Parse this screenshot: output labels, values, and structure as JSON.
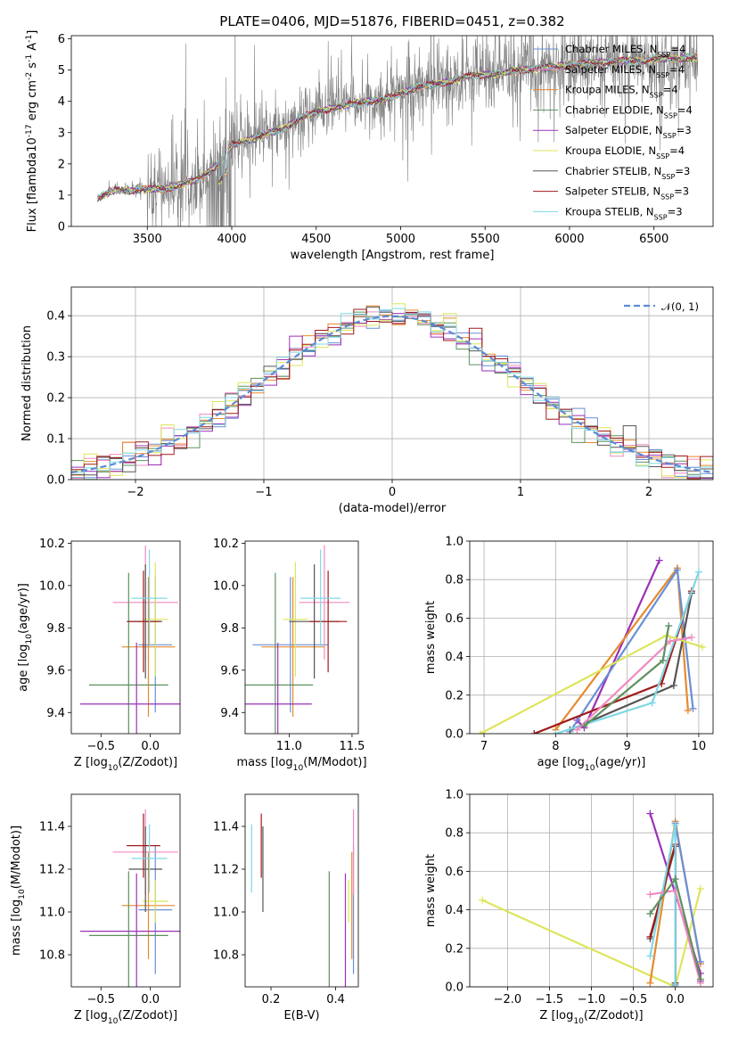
{
  "colors": {
    "Chabrier MILES": "#6a8fd6",
    "Salpeter MILES": "#f08ac0",
    "Kroupa MILES": "#e58a2f",
    "Chabrier ELODIE": "#5e9160",
    "Salpeter ELODIE": "#9b30b8",
    "Kroupa ELODIE": "#dde55a",
    "Chabrier STELIB": "#555555",
    "Salpeter STELIB": "#a01a1a",
    "Kroupa STELIB": "#7fd8e6",
    "data": "#808080",
    "normal_curve": "#5b8bd6",
    "grid": "#b0b0b0"
  },
  "chart_data": [
    {
      "id": "spectrum",
      "type": "line",
      "title": "PLATE=0406, MJD=51876, FIBERID=0451, z=0.382",
      "xlabel": "wavelength [Angstrom, rest frame]",
      "ylabel": "Flux [f$_\\lambda$10$^{-17}$ erg cm$^{-2}$ s$^{-1}$ A$^{-1}$]",
      "xlim": [
        3050,
        6850
      ],
      "ylim": [
        0,
        6.1
      ],
      "xticks": [
        3500,
        4000,
        4500,
        5000,
        5500,
        6000,
        6500
      ],
      "yticks": [
        0,
        1,
        2,
        3,
        4,
        5,
        6
      ],
      "grid": false,
      "legend_position": "top-right",
      "continuum": {
        "x": [
          3200,
          3300,
          3400,
          3500,
          3600,
          3700,
          3800,
          3900,
          3950,
          4000,
          4100,
          4200,
          4300,
          4400,
          4500,
          4600,
          4700,
          4800,
          4900,
          5000,
          5100,
          5200,
          5300,
          5400,
          5500,
          5600,
          5700,
          5800,
          5900,
          6000,
          6100,
          6200,
          6300,
          6400,
          6500,
          6600,
          6700
        ],
        "y": [
          0.9,
          1.15,
          1.15,
          1.2,
          1.2,
          1.35,
          1.5,
          1.9,
          2.2,
          2.6,
          2.75,
          2.95,
          3.1,
          3.45,
          3.65,
          3.8,
          3.9,
          4.0,
          4.05,
          4.25,
          4.45,
          4.55,
          4.65,
          4.8,
          4.85,
          4.9,
          5.0,
          5.05,
          5.1,
          5.15,
          5.2,
          5.25,
          5.3,
          5.3,
          5.35,
          5.35,
          5.4
        ]
      },
      "series": [
        {
          "name": "Chabrier MILES, N$_{SSP}$=4"
        },
        {
          "name": "Salpeter MILES, N$_{SSP}$=4"
        },
        {
          "name": "Kroupa MILES, N$_{SSP}$=4"
        },
        {
          "name": "Chabrier ELODIE, N$_{SSP}$=4"
        },
        {
          "name": "Salpeter ELODIE, N$_{SSP}$=3"
        },
        {
          "name": "Kroupa ELODIE, N$_{SSP}$=4"
        },
        {
          "name": "Chabrier STELIB, N$_{SSP}$=3"
        },
        {
          "name": "Salpeter STELIB, N$_{SSP}$=3"
        },
        {
          "name": "Kroupa STELIB, N$_{SSP}$=3"
        }
      ]
    },
    {
      "id": "residuals",
      "type": "line",
      "xlabel": "(data-model)/error",
      "ylabel": "Normed distribution",
      "xlim": [
        -2.5,
        2.5
      ],
      "ylim": [
        0,
        0.47
      ],
      "xticks": [
        -2,
        -1,
        0,
        1,
        2
      ],
      "yticks": [
        0.0,
        0.1,
        0.2,
        0.3,
        0.4
      ],
      "grid": true,
      "legend": "$\\mathcal{N}(0,1)$",
      "legend_position": "top-right",
      "bin_width": 0.1,
      "normal": {
        "mean": 0,
        "sigma": 1
      }
    },
    {
      "id": "age-vs-Z",
      "type": "scatter",
      "xlabel": "Z [log$_{10}$($Z/Z_\\odot$)]",
      "ylabel": "age  [log$_{10}$($age/yr$)]",
      "xlim": [
        -0.8,
        0.3
      ],
      "ylim": [
        9.3,
        10.21
      ],
      "xticks": [
        -0.5,
        0.0
      ],
      "yticks": [
        9.4,
        9.6,
        9.8,
        10.0,
        10.2
      ],
      "points": [
        {
          "model": "Chabrier MILES",
          "x": 0.05,
          "xerr": 0.17,
          "y": 9.72,
          "yerr": 0.32
        },
        {
          "model": "Salpeter MILES",
          "x": -0.05,
          "xerr": 0.33,
          "y": 9.92,
          "yerr": 0.27
        },
        {
          "model": "Kroupa MILES",
          "x": -0.02,
          "xerr": 0.27,
          "y": 9.71,
          "yerr": 0.33
        },
        {
          "model": "Chabrier ELODIE",
          "x": -0.22,
          "xerr": 0.4,
          "y": 9.53,
          "yerr": 0.53
        },
        {
          "model": "Salpeter ELODIE",
          "x": -0.14,
          "xerr": 0.57,
          "y": 9.44,
          "yerr": 0.29
        },
        {
          "model": "Kroupa ELODIE",
          "x": 0.05,
          "xerr": 0.13,
          "y": 9.84,
          "yerr": 0.27
        },
        {
          "model": "Chabrier STELIB",
          "x": -0.05,
          "xerr": 0.17,
          "y": 9.83,
          "yerr": 0.27
        },
        {
          "model": "Salpeter STELIB",
          "x": -0.07,
          "xerr": 0.17,
          "y": 9.83,
          "yerr": 0.24
        },
        {
          "model": "Kroupa STELIB",
          "x": -0.01,
          "xerr": 0.18,
          "y": 9.94,
          "yerr": 0.23
        }
      ]
    },
    {
      "id": "age-vs-mass",
      "type": "scatter",
      "xlim": [
        10.65,
        11.55
      ],
      "ylim": [
        9.3,
        10.21
      ],
      "xlabel": "mass [log$_{10}$($M/M_\\odot$)]",
      "xticks": [
        11.0,
        11.5
      ],
      "yticks": [
        9.4,
        9.6,
        9.8,
        10.0,
        10.2
      ],
      "points": [
        {
          "model": "Chabrier MILES",
          "x": 11.01,
          "xerr": 0.3,
          "y": 9.72,
          "yerr": 0.32
        },
        {
          "model": "Salpeter MILES",
          "x": 11.28,
          "xerr": 0.2,
          "y": 9.92,
          "yerr": 0.27
        },
        {
          "model": "Kroupa MILES",
          "x": 11.03,
          "xerr": 0.25,
          "y": 9.71,
          "yerr": 0.33
        },
        {
          "model": "Chabrier ELODIE",
          "x": 10.89,
          "xerr": 0.3,
          "y": 9.53,
          "yerr": 0.53
        },
        {
          "model": "Salpeter ELODIE",
          "x": 10.91,
          "xerr": 0.27,
          "y": 9.44,
          "yerr": 0.29
        },
        {
          "model": "Kroupa ELODIE",
          "x": 11.05,
          "xerr": 0.1,
          "y": 9.84,
          "yerr": 0.27
        },
        {
          "model": "Chabrier STELIB",
          "x": 11.2,
          "xerr": 0.2,
          "y": 9.83,
          "yerr": 0.27
        },
        {
          "model": "Salpeter STELIB",
          "x": 11.31,
          "xerr": 0.15,
          "y": 9.83,
          "yerr": 0.24
        },
        {
          "model": "Kroupa STELIB",
          "x": 11.25,
          "xerr": 0.16,
          "y": 9.94,
          "yerr": 0.23
        }
      ]
    },
    {
      "id": "weight-vs-age",
      "type": "line",
      "xlabel": "age  [log$_{10}$($age/yr$)]",
      "ylabel": "mass weight",
      "xlim": [
        6.8,
        10.2
      ],
      "ylim": [
        0,
        1.0
      ],
      "xticks": [
        7,
        8,
        9,
        10
      ],
      "yticks": [
        0.0,
        0.2,
        0.4,
        0.6,
        0.8,
        1.0
      ],
      "grid": true,
      "series": [
        {
          "model": "Salpeter ELODIE",
          "x": [
            8.3,
            8.4,
            9.45
          ],
          "y": [
            0.07,
            0.03,
            0.9
          ]
        },
        {
          "model": "Kroupa MILES",
          "x": [
            8.0,
            9.7,
            9.85
          ],
          "y": [
            0.02,
            0.86,
            0.12
          ]
        },
        {
          "model": "Chabrier MILES",
          "x": [
            8.2,
            9.7,
            9.92
          ],
          "y": [
            0.01,
            0.85,
            0.13
          ]
        },
        {
          "model": "Chabrier STELIB",
          "x": [
            8.2,
            9.65,
            9.9
          ],
          "y": [
            0.02,
            0.25,
            0.73
          ]
        },
        {
          "model": "Salpeter STELIB",
          "x": [
            7.7,
            9.48,
            9.9
          ],
          "y": [
            0.0,
            0.26,
            0.74
          ]
        },
        {
          "model": "Kroupa STELIB",
          "x": [
            8.0,
            9.35,
            10.0
          ],
          "y": [
            0.0,
            0.16,
            0.84
          ]
        },
        {
          "model": "Kroupa ELODIE",
          "x": [
            6.95,
            9.55,
            10.05
          ],
          "y": [
            0.0,
            0.51,
            0.45
          ]
        },
        {
          "model": "Salpeter MILES",
          "x": [
            8.3,
            9.6,
            9.9
          ],
          "y": [
            0.02,
            0.48,
            0.5
          ]
        },
        {
          "model": "Chabrier ELODIE",
          "x": [
            8.4,
            9.5,
            9.58
          ],
          "y": [
            0.04,
            0.38,
            0.56
          ]
        }
      ]
    },
    {
      "id": "mass-vs-Z",
      "type": "scatter",
      "xlabel": "Z [log$_{10}$($Z/Z_\\odot$)]",
      "ylabel": "mass [log$_{10}$($M/M_\\odot$)]",
      "xlim": [
        -0.8,
        0.3
      ],
      "ylim": [
        10.65,
        11.55
      ],
      "xticks": [
        -0.5,
        0.0
      ],
      "yticks": [
        10.8,
        11.0,
        11.2,
        11.4
      ],
      "points": [
        {
          "model": "Chabrier MILES",
          "x": 0.05,
          "xerr": 0.17,
          "y": 11.01,
          "yerr": 0.3
        },
        {
          "model": "Salpeter MILES",
          "x": -0.05,
          "xerr": 0.33,
          "y": 11.28,
          "yerr": 0.2
        },
        {
          "model": "Kroupa MILES",
          "x": -0.02,
          "xerr": 0.27,
          "y": 11.03,
          "yerr": 0.25
        },
        {
          "model": "Chabrier ELODIE",
          "x": -0.22,
          "xerr": 0.4,
          "y": 10.89,
          "yerr": 0.3
        },
        {
          "model": "Salpeter ELODIE",
          "x": -0.14,
          "xerr": 0.57,
          "y": 10.91,
          "yerr": 0.27
        },
        {
          "model": "Kroupa ELODIE",
          "x": 0.05,
          "xerr": 0.13,
          "y": 11.05,
          "yerr": 0.1
        },
        {
          "model": "Chabrier STELIB",
          "x": -0.05,
          "xerr": 0.17,
          "y": 11.2,
          "yerr": 0.2
        },
        {
          "model": "Salpeter STELIB",
          "x": -0.07,
          "xerr": 0.17,
          "y": 11.31,
          "yerr": 0.15
        },
        {
          "model": "Kroupa STELIB",
          "x": -0.01,
          "xerr": 0.18,
          "y": 11.25,
          "yerr": 0.16
        }
      ]
    },
    {
      "id": "mass-vs-ebv",
      "type": "scatter",
      "xlabel": "E(B-V)",
      "xlim": [
        0.12,
        0.47
      ],
      "ylim": [
        10.65,
        11.55
      ],
      "xticks": [
        0.2,
        0.4
      ],
      "yticks": [
        10.8,
        11.0,
        11.2,
        11.4
      ],
      "points": [
        {
          "model": "Chabrier MILES",
          "x": 0.455,
          "xerr": 0,
          "y": 11.01,
          "yerr": 0.3
        },
        {
          "model": "Salpeter MILES",
          "x": 0.455,
          "xerr": 0,
          "y": 11.28,
          "yerr": 0.2
        },
        {
          "model": "Kroupa MILES",
          "x": 0.45,
          "xerr": 0,
          "y": 11.03,
          "yerr": 0.25
        },
        {
          "model": "Chabrier ELODIE",
          "x": 0.38,
          "xerr": 0,
          "y": 10.89,
          "yerr": 0.3
        },
        {
          "model": "Salpeter ELODIE",
          "x": 0.43,
          "xerr": 0,
          "y": 10.91,
          "yerr": 0.27
        },
        {
          "model": "Kroupa ELODIE",
          "x": 0.44,
          "xerr": 0,
          "y": 11.05,
          "yerr": 0.1
        },
        {
          "model": "Chabrier STELIB",
          "x": 0.175,
          "xerr": 0,
          "y": 11.2,
          "yerr": 0.2
        },
        {
          "model": "Salpeter STELIB",
          "x": 0.17,
          "xerr": 0,
          "y": 11.31,
          "yerr": 0.15
        },
        {
          "model": "Kroupa STELIB",
          "x": 0.14,
          "xerr": 0,
          "y": 11.25,
          "yerr": 0.16
        }
      ]
    },
    {
      "id": "weight-vs-Z",
      "type": "line",
      "xlabel": "Z [log$_{10}$($Z/Z_\\odot$)]",
      "ylabel": "mass weight",
      "xlim": [
        -2.45,
        0.45
      ],
      "ylim": [
        0,
        1.0
      ],
      "xticks": [
        -2.0,
        -1.5,
        -1.0,
        -0.5,
        0.0
      ],
      "yticks": [
        0.0,
        0.2,
        0.4,
        0.6,
        0.8,
        1.0
      ],
      "grid": true,
      "series": [
        {
          "model": "Kroupa ELODIE",
          "x": [
            -2.3,
            0.0,
            0.3
          ],
          "y": [
            0.45,
            0.0,
            0.51
          ]
        },
        {
          "model": "Salpeter ELODIE",
          "x": [
            -0.3,
            0.3,
            0.3
          ],
          "y": [
            0.9,
            0.07,
            0.03
          ]
        },
        {
          "model": "Kroupa MILES",
          "x": [
            -0.3,
            0.0,
            0.3
          ],
          "y": [
            0.02,
            0.86,
            0.12
          ]
        },
        {
          "model": "Chabrier MILES",
          "x": [
            0.0,
            0.0,
            0.3
          ],
          "y": [
            0.01,
            0.85,
            0.13
          ]
        },
        {
          "model": "Chabrier STELIB",
          "x": [
            -0.3,
            0.0,
            0.0
          ],
          "y": [
            0.25,
            0.73,
            0.02
          ]
        },
        {
          "model": "Salpeter STELIB",
          "x": [
            -0.3,
            0.0,
            0.0
          ],
          "y": [
            0.26,
            0.74,
            0.0
          ]
        },
        {
          "model": "Kroupa STELIB",
          "x": [
            -0.3,
            0.0,
            0.0
          ],
          "y": [
            0.16,
            0.84,
            0.0
          ]
        },
        {
          "model": "Salpeter MILES",
          "x": [
            -0.3,
            0.0,
            0.3
          ],
          "y": [
            0.48,
            0.5,
            0.02
          ]
        },
        {
          "model": "Chabrier ELODIE",
          "x": [
            -0.3,
            0.0,
            0.3
          ],
          "y": [
            0.38,
            0.56,
            0.04
          ]
        }
      ]
    }
  ]
}
